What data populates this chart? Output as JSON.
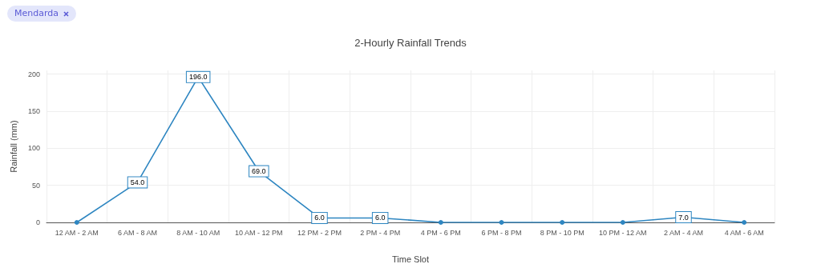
{
  "chart_data": {
    "type": "line",
    "title": "2-Hourly Rainfall Trends",
    "xlabel": "Time Slot",
    "ylabel": "Rainfall (mm)",
    "annotations": [
      "Mendarda"
    ],
    "categories": [
      "12 AM - 2 AM",
      "6 AM - 8 AM",
      "8 AM - 10 AM",
      "10 AM - 12 PM",
      "12 PM - 2 PM",
      "2 PM - 4 PM",
      "4 PM - 6 PM",
      "6 PM - 8 PM",
      "8 PM - 10 PM",
      "10 PM - 12 AM",
      "2 AM - 4 AM",
      "4 AM - 6 AM"
    ],
    "series": [
      {
        "color": "#2e86c1",
        "values": [
          0,
          54,
          196,
          69,
          6,
          6,
          0,
          0,
          0,
          0,
          7,
          0
        ],
        "value_labels": [
          null,
          "54.0",
          "196.0",
          "69.0",
          "6.0",
          "6.0",
          null,
          null,
          null,
          null,
          "7.0",
          null
        ]
      }
    ],
    "ylim": [
      0,
      205
    ],
    "yticks": [
      0,
      50,
      100,
      150,
      200
    ],
    "grid": true,
    "marker": "circle",
    "line_style": "solid"
  }
}
